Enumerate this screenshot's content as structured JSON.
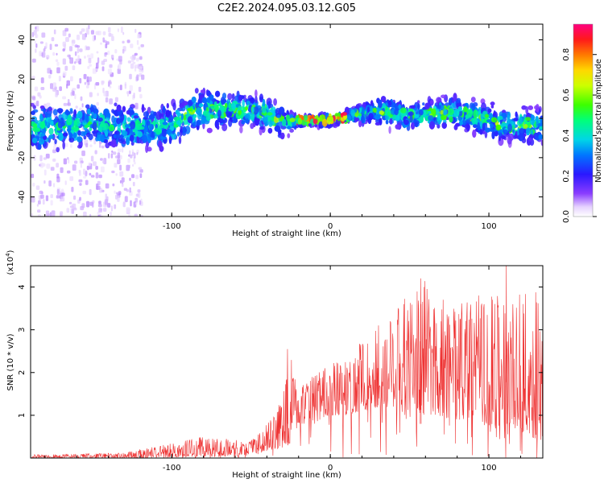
{
  "title": "C2E2.2024.095.03.12.G05",
  "colors": {
    "snr_line": "#ee3030",
    "axis": "#000000"
  },
  "chart_data": [
    {
      "type": "heatmap",
      "name": "spectrogram",
      "xlabel": "Height of straight line (km)",
      "ylabel": "Frequency (Hz)",
      "xlim": [
        -189,
        134
      ],
      "ylim": [
        -50,
        48
      ],
      "x_ticks": [
        -100,
        0,
        100
      ],
      "x_tick_labels": [
        "-100",
        "0",
        "100"
      ],
      "y_ticks": [
        -40,
        -20,
        0,
        20,
        40
      ],
      "y_tick_labels": [
        "-40",
        "-20",
        "0",
        "20",
        "40"
      ],
      "colorbar": {
        "label": "Normalized spectral amplitude",
        "range": [
          0.0,
          0.95
        ],
        "ticks": [
          0.0,
          0.2,
          0.4,
          0.6,
          0.8
        ],
        "tick_labels": [
          "0.0",
          "0.2",
          "0.4",
          "0.6",
          "0.8"
        ]
      },
      "band_center_hz": [
        {
          "x": -185,
          "f": -5
        },
        {
          "x": -150,
          "f": -3
        },
        {
          "x": -120,
          "f": -5
        },
        {
          "x": -100,
          "f": -4
        },
        {
          "x": -85,
          "f": 4
        },
        {
          "x": -60,
          "f": 5
        },
        {
          "x": -40,
          "f": 3
        },
        {
          "x": -30,
          "f": -3
        },
        {
          "x": -20,
          "f": -1
        },
        {
          "x": 0,
          "f": -1
        },
        {
          "x": 10,
          "f": 1
        },
        {
          "x": 30,
          "f": 4
        },
        {
          "x": 50,
          "f": 1
        },
        {
          "x": 80,
          "f": 3
        },
        {
          "x": 110,
          "f": -3
        },
        {
          "x": 134,
          "f": -4
        }
      ],
      "band_halfwidth_hz": [
        {
          "x": -185,
          "w": 12
        },
        {
          "x": -100,
          "w": 11
        },
        {
          "x": -60,
          "w": 9
        },
        {
          "x": -30,
          "w": 8
        },
        {
          "x": -20,
          "w": 3
        },
        {
          "x": 10,
          "w": 3
        },
        {
          "x": 30,
          "w": 7
        },
        {
          "x": 80,
          "w": 8
        },
        {
          "x": 134,
          "w": 9
        }
      ],
      "peak_amplitude_regions": [
        {
          "x_from": -22,
          "x_to": 10,
          "amplitude": 0.9
        }
      ]
    },
    {
      "type": "line",
      "name": "snr",
      "xlabel": "Height of straight line (km)",
      "ylabel": "SNR (10 * v/v)",
      "y_scale_label": "(x10",
      "y_scale_exponent": "4",
      "y_scale_suffix": ")",
      "xlim": [
        -189,
        134
      ],
      "ylim": [
        0,
        4.5
      ],
      "x_ticks": [
        -100,
        0,
        100
      ],
      "x_tick_labels": [
        "-100",
        "0",
        "100"
      ],
      "y_ticks": [
        1,
        2,
        3,
        4
      ],
      "y_tick_labels": [
        "1",
        "2",
        "3",
        "4"
      ],
      "envelope_x_km": [
        -189,
        -130,
        -100,
        -80,
        -50,
        -40,
        -30,
        -25,
        -20,
        -10,
        0,
        10,
        20,
        40,
        60,
        80,
        100,
        134
      ],
      "envelope_low": [
        0.0,
        0.0,
        0.02,
        0.04,
        0.06,
        0.15,
        0.3,
        0.3,
        0.8,
        0.8,
        1.0,
        1.0,
        1.1,
        1.2,
        1.0,
        0.9,
        0.7,
        0.4
      ],
      "envelope_high": [
        0.08,
        0.12,
        0.35,
        0.5,
        0.4,
        0.8,
        1.4,
        2.55,
        1.6,
        2.0,
        2.2,
        2.3,
        2.8,
        3.5,
        4.2,
        3.6,
        3.9,
        3.9
      ],
      "annotated_peaks": [
        {
          "x": -27,
          "y": 2.55
        },
        {
          "x": 57,
          "y": 4.2
        },
        {
          "x": 111,
          "y": 4.5
        }
      ]
    }
  ]
}
